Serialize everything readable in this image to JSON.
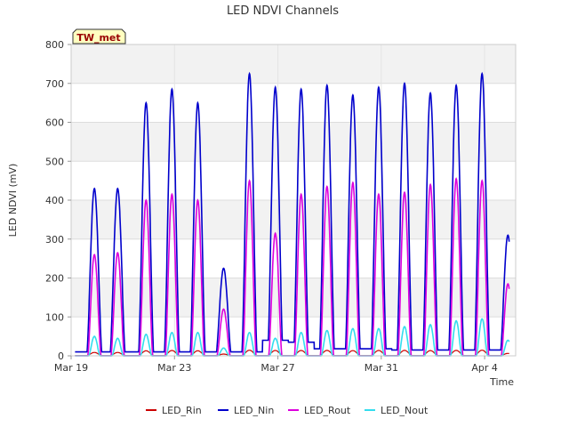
{
  "chart_data": {
    "type": "line",
    "title": "LED NDVI Channels",
    "xlabel": "Time",
    "ylabel": "LED NDVI (mV)",
    "badge": "TW_met",
    "ylim": [
      0,
      800
    ],
    "yticks": [
      0,
      100,
      200,
      300,
      400,
      500,
      600,
      700,
      800
    ],
    "xlim_days": [
      0,
      17.2
    ],
    "xticks": [
      {
        "label": "Mar 19",
        "day": 0
      },
      {
        "label": "Mar 23",
        "day": 4
      },
      {
        "label": "Mar 27",
        "day": 8
      },
      {
        "label": "Mar 31",
        "day": 12
      },
      {
        "label": "Apr 4",
        "day": 16
      }
    ],
    "background_bands": true,
    "legend_position": "bottom",
    "series": [
      {
        "name": "LED_Rin",
        "color": "#cc0000"
      },
      {
        "name": "LED_Nin",
        "color": "#0000cc"
      },
      {
        "name": "LED_Rout",
        "color": "#dd00dd"
      },
      {
        "name": "LED_Nout",
        "color": "#33ddee"
      }
    ],
    "daily_peaks": {
      "days": [
        0.9,
        1.8,
        2.9,
        3.9,
        4.9,
        5.9,
        6.9,
        7.9,
        8.9,
        9.9,
        10.9,
        11.9,
        12.9,
        13.9,
        14.9,
        15.9,
        16.9
      ],
      "LED_Nin": [
        430,
        430,
        650,
        685,
        650,
        225,
        725,
        690,
        685,
        695,
        670,
        690,
        700,
        675,
        695,
        725,
        310
      ],
      "LED_Rout": [
        260,
        265,
        400,
        415,
        400,
        120,
        450,
        315,
        415,
        435,
        445,
        415,
        420,
        440,
        455,
        450,
        185
      ],
      "LED_Nout": [
        50,
        45,
        55,
        60,
        60,
        20,
        60,
        45,
        60,
        65,
        70,
        70,
        75,
        80,
        90,
        95,
        40
      ],
      "LED_Nin_night": [
        10,
        10,
        10,
        10,
        10,
        10,
        10,
        40,
        35,
        18,
        18,
        18,
        15,
        15,
        15,
        15,
        15
      ]
    }
  }
}
